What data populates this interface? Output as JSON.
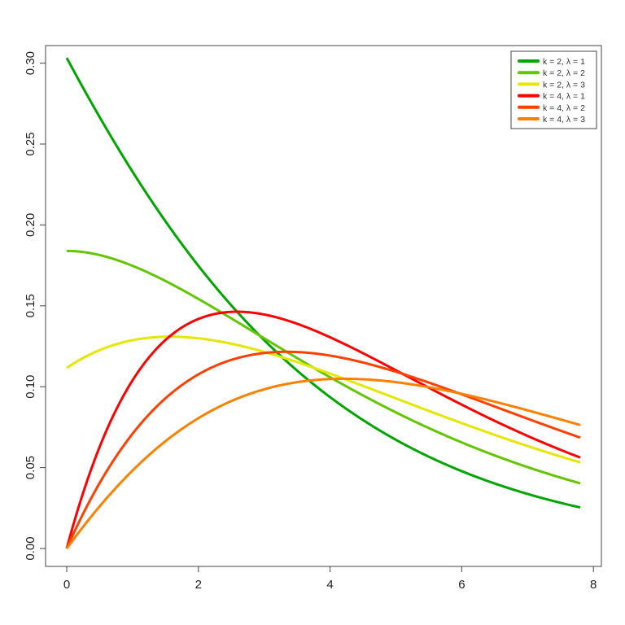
{
  "chart_data": {
    "type": "line",
    "title": "",
    "xlabel": "",
    "ylabel": "",
    "xlim": [
      0,
      8
    ],
    "ylim": [
      0,
      0.3
    ],
    "x_range_plotted": [
      0,
      7.8
    ],
    "x_ticks": [
      "0",
      "2",
      "4",
      "6",
      "8"
    ],
    "y_ticks": [
      "0.00",
      "0.05",
      "0.10",
      "0.15",
      "0.20",
      "0.25",
      "0.30"
    ],
    "grid": false,
    "legend_position": "top-right",
    "series": [
      {
        "name": "k = 2, λ = 1",
        "k": 2,
        "lambda": 1,
        "color": "#00A600",
        "x": [
          0,
          1,
          2,
          3,
          4,
          5,
          6,
          7,
          7.8
        ],
        "values": [
          0.303,
          0.215,
          0.154,
          0.111,
          0.08,
          0.058,
          0.042,
          0.031,
          0.025
        ]
      },
      {
        "name": "k = 2, λ = 2",
        "k": 2,
        "lambda": 2,
        "color": "#63C600",
        "x": [
          0,
          1,
          2,
          3,
          4,
          5,
          6,
          7,
          7.8
        ],
        "values": [
          0.184,
          0.174,
          0.153,
          0.13,
          0.108,
          0.088,
          0.07,
          0.055,
          0.04
        ]
      },
      {
        "name": "k = 2, λ = 3",
        "k": 2,
        "lambda": 3,
        "color": "#E6E600",
        "x": [
          0,
          1,
          2,
          3,
          4,
          5,
          6,
          7,
          7.8
        ],
        "values": [
          0.112,
          0.129,
          0.13,
          0.122,
          0.11,
          0.096,
          0.083,
          0.07,
          0.053
        ]
      },
      {
        "name": "k = 4, λ = 1",
        "k": 4,
        "lambda": 1,
        "color": "#FF0000",
        "x": [
          0,
          1,
          2,
          3,
          4,
          5,
          6,
          7,
          7.8
        ],
        "values": [
          0.0,
          0.113,
          0.143,
          0.144,
          0.13,
          0.11,
          0.089,
          0.069,
          0.056
        ]
      },
      {
        "name": "k = 4, λ = 2",
        "k": 4,
        "lambda": 2,
        "color": "#FF4000",
        "x": [
          0,
          1,
          2,
          3,
          4,
          5,
          6,
          7,
          7.8
        ],
        "values": [
          0.0,
          0.075,
          0.109,
          0.121,
          0.12,
          0.111,
          0.098,
          0.084,
          0.068
        ]
      },
      {
        "name": "k = 4, λ = 3",
        "k": 4,
        "lambda": 3,
        "color": "#FF8000",
        "x": [
          0,
          1,
          2,
          3,
          4,
          5,
          6,
          7,
          7.8
        ],
        "values": [
          0.0,
          0.05,
          0.083,
          0.099,
          0.105,
          0.103,
          0.096,
          0.087,
          0.076
        ]
      }
    ]
  }
}
